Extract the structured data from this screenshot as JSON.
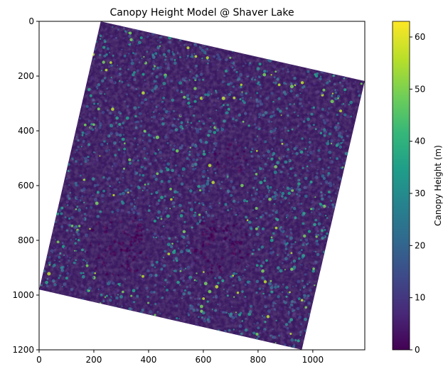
{
  "chart_data": {
    "type": "heatmap",
    "title": "Canopy Height Model @ Shaver Lake",
    "xlabel": "",
    "ylabel": "",
    "xlim": [
      0,
      1190
    ],
    "ylim": [
      1200,
      0
    ],
    "x_ticks": [
      0,
      200,
      400,
      600,
      800,
      1000
    ],
    "y_ticks": [
      0,
      200,
      400,
      600,
      800,
      1000,
      1200
    ],
    "raster_corners_data_units": [
      [
        225,
        0
      ],
      [
        1190,
        218
      ],
      [
        960,
        1200
      ],
      [
        0,
        980
      ]
    ],
    "colorbar": {
      "label": "Canopy Height (m)",
      "range": [
        0,
        63
      ],
      "ticks": [
        0,
        10,
        20,
        30,
        40,
        50,
        60
      ],
      "colormap": "viridis",
      "colors": [
        "#440154",
        "#482878",
        "#3e4989",
        "#31688e",
        "#26828e",
        "#1f9e89",
        "#35b779",
        "#6ece58",
        "#b5de2b",
        "#fde725"
      ]
    },
    "grid": false,
    "legend": "none"
  }
}
